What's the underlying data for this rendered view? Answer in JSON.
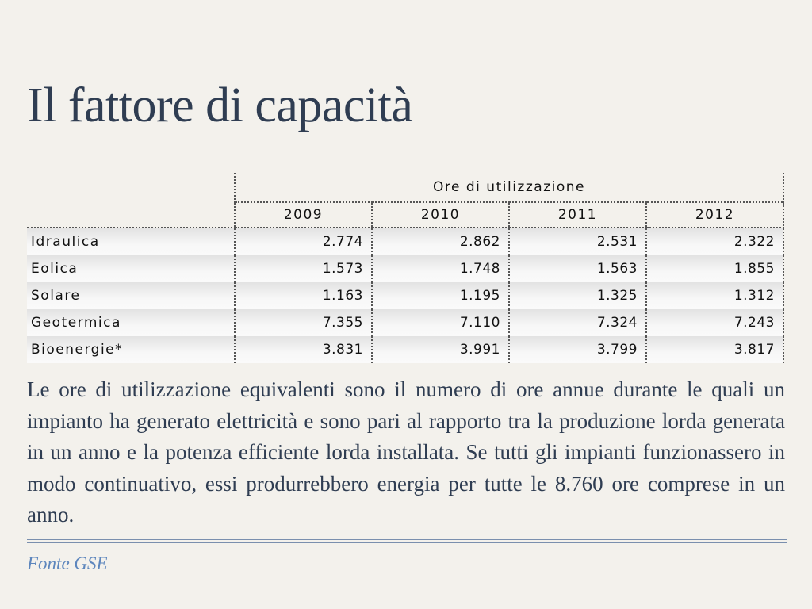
{
  "title": "Il fattore di capacità",
  "table": {
    "group_header": "Ore di utilizzazione",
    "years": [
      "2009",
      "2010",
      "2011",
      "2012"
    ],
    "rows": [
      {
        "label": "Idraulica",
        "values": [
          "2.774",
          "2.862",
          "2.531",
          "2.322"
        ]
      },
      {
        "label": "Eolica",
        "values": [
          "1.573",
          "1.748",
          "1.563",
          "1.855"
        ]
      },
      {
        "label": "Solare",
        "values": [
          "1.163",
          "1.195",
          "1.325",
          "1.312"
        ]
      },
      {
        "label": "Geotermica",
        "values": [
          "7.355",
          "7.110",
          "7.324",
          "7.243"
        ]
      },
      {
        "label": "Bioenergie*",
        "values": [
          "3.831",
          "3.991",
          "3.799",
          "3.817"
        ]
      }
    ]
  },
  "body_text": "Le ore di utilizzazione equivalenti sono il numero di ore annue durante le quali un impianto ha generato elettricità e sono pari al rapporto tra la produzione lorda generata in un anno e la potenza efficiente lorda installata. Se tutti gli impianti funzionassero in modo continuativo, essi produrrebbero energia per tutte le 8.760 ore comprese in un anno.",
  "source": "Fonte GSE"
}
